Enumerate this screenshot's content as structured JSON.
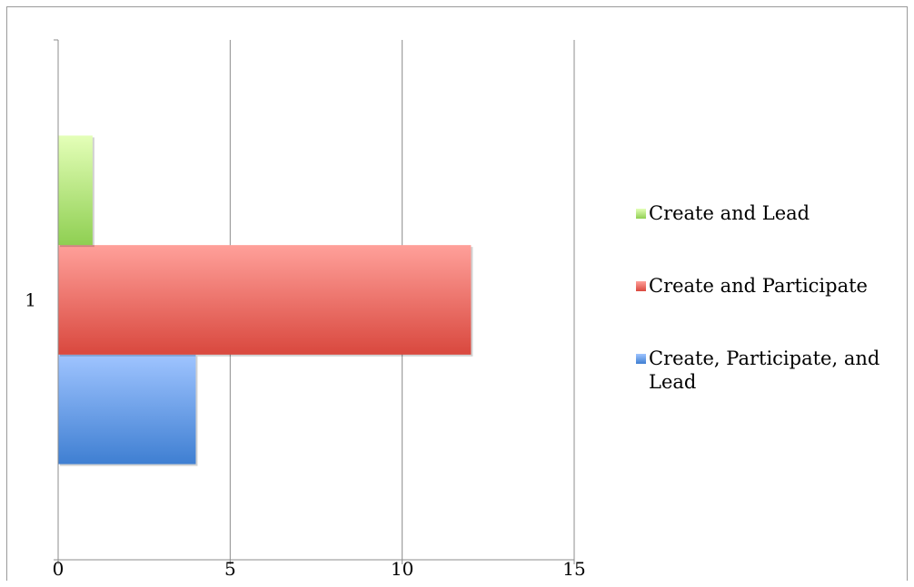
{
  "chart_data": {
    "type": "bar",
    "orientation": "horizontal",
    "categories": [
      "1"
    ],
    "series": [
      {
        "name": "Create, Participate, and Lead",
        "values": [
          4
        ],
        "color": "#5b8fd6"
      },
      {
        "name": "Create and Participate",
        "values": [
          12
        ],
        "color": "#e06055"
      },
      {
        "name": "Create and Lead",
        "values": [
          1
        ],
        "color": "#a6d965"
      }
    ],
    "xlim": [
      0,
      15
    ],
    "x_ticks": [
      "0",
      "5",
      "10",
      "15"
    ],
    "y_ticks": [
      "1"
    ],
    "grid": "vertical",
    "legend": "right",
    "title": "",
    "xlabel": "",
    "ylabel": ""
  }
}
